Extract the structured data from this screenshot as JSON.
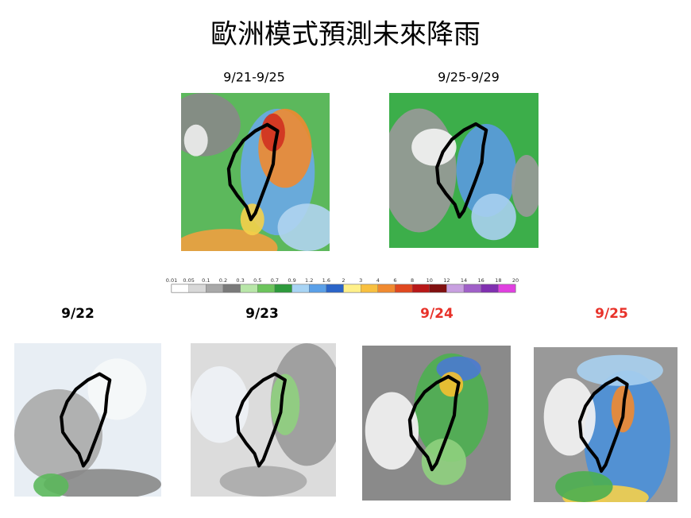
{
  "title": "歐洲模式預測未來降雨",
  "top_panels": [
    {
      "label": "9/21-9/25"
    },
    {
      "label": "9/25-9/29"
    }
  ],
  "colorbar": {
    "ticks": [
      "0.01",
      "0.05",
      "0.1",
      "0.2",
      "0.3",
      "0.5",
      "0.7",
      "0.9",
      "1.2",
      "1.6",
      "2",
      "3",
      "4",
      "6",
      "8",
      "10",
      "12",
      "14",
      "16",
      "18",
      "20"
    ]
  },
  "bottom_panels": [
    {
      "label": "9/22"
    },
    {
      "label": "9/23"
    },
    {
      "label": "9/24"
    },
    {
      "label": "9/25"
    }
  ]
}
